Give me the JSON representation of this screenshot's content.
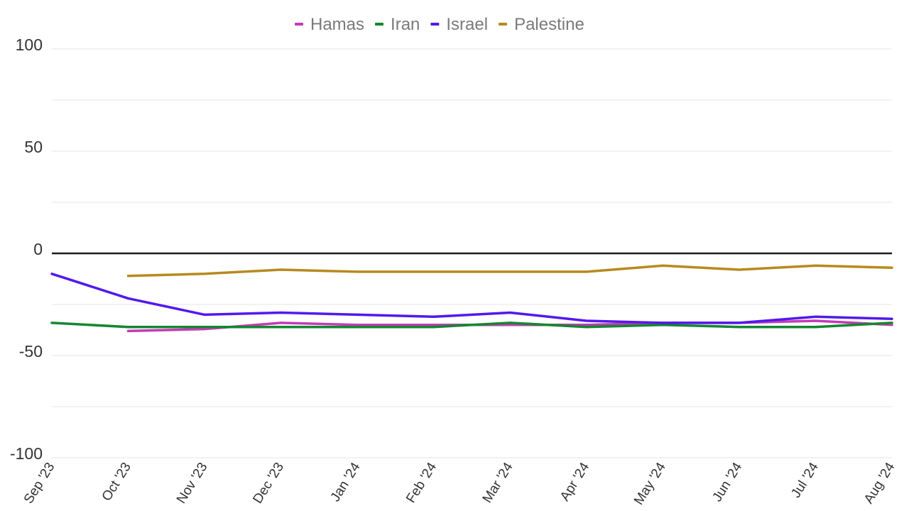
{
  "chart_data": {
    "type": "line",
    "title": "",
    "xlabel": "",
    "ylabel": "",
    "categories": [
      "Sep '23",
      "Oct '23",
      "Nov '23",
      "Dec '23",
      "Jan '24",
      "Feb '24",
      "Mar '24",
      "Apr '24",
      "May '24",
      "Jun '24",
      "Jul '24",
      "Aug '24"
    ],
    "ylim": [
      -100,
      100
    ],
    "yticks": [
      "100",
      "50",
      "0",
      "-50",
      "-100"
    ],
    "gridlines": [
      100,
      75,
      50,
      25,
      0,
      -25,
      -50,
      -75,
      -100
    ],
    "grid": true,
    "legend_position": "top-center",
    "series": [
      {
        "name": "Hamas",
        "color": "#c43bb5",
        "values": [
          null,
          -38,
          -37,
          -34,
          -35,
          -35,
          -35,
          -35,
          -34,
          -34,
          -33,
          -35
        ]
      },
      {
        "name": "Iran",
        "color": "#13872f",
        "values": [
          -34,
          -36,
          -36,
          -36,
          -36,
          -36,
          -34,
          -36,
          -35,
          -36,
          -36,
          -34
        ]
      },
      {
        "name": "Israel",
        "color": "#5219ee",
        "values": [
          -10,
          -22,
          -30,
          -29,
          -30,
          -31,
          -29,
          -33,
          -34,
          -34,
          -31,
          -32
        ]
      },
      {
        "name": "Palestine",
        "color": "#b88a1e",
        "values": [
          null,
          -11,
          -10,
          -8,
          -9,
          -9,
          -9,
          -9,
          -6,
          -8,
          -6,
          -7
        ]
      }
    ]
  }
}
